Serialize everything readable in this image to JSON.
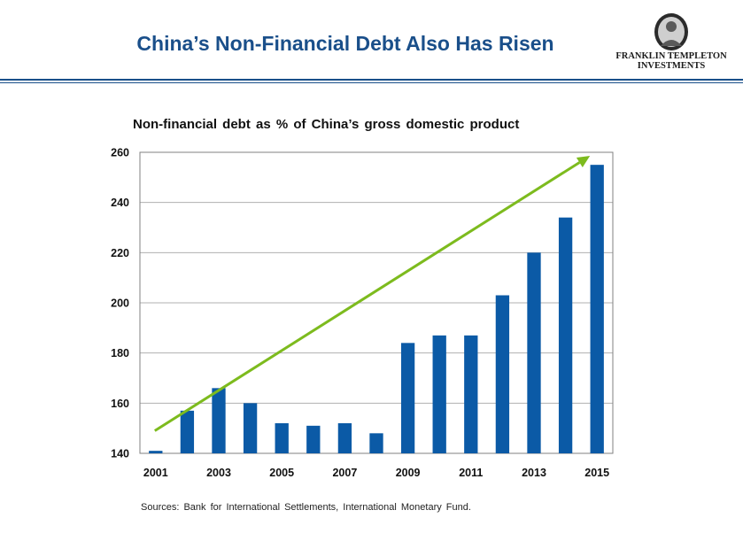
{
  "slide": {
    "title": "China’s Non-Financial Debt Also Has Risen",
    "logo_line1": "FRANKLIN TEMPLETON",
    "logo_line2": "INVESTMENTS",
    "sources": "Sources: Bank for International Settlements, International Monetary Fund."
  },
  "colors": {
    "bar": "#0b5aa6",
    "trend": "#7dbb1e",
    "title": "#1a4f8a",
    "grid": "#b0b0b0"
  },
  "chart_data": {
    "type": "bar",
    "title": "Non-financial debt as % of China’s gross domestic product",
    "xlabel": "",
    "ylabel": "",
    "categories": [
      "2001",
      "2002",
      "2003",
      "2004",
      "2005",
      "2006",
      "2007",
      "2008",
      "2009",
      "2010",
      "2011",
      "2012",
      "2013",
      "2014",
      "2015"
    ],
    "x_tick_labels": [
      "2001",
      "2003",
      "2005",
      "2007",
      "2009",
      "2011",
      "2013",
      "2015"
    ],
    "values": [
      141,
      157,
      166,
      160,
      152,
      151,
      152,
      148,
      184,
      187,
      187,
      203,
      220,
      234,
      255
    ],
    "ylim": [
      140,
      260
    ],
    "yticks": [
      140,
      160,
      180,
      200,
      220,
      240,
      260
    ],
    "grid": true,
    "annotations": [
      {
        "type": "trend-arrow",
        "from": [
          "2001",
          149
        ],
        "to": [
          "2015",
          260
        ]
      }
    ]
  }
}
